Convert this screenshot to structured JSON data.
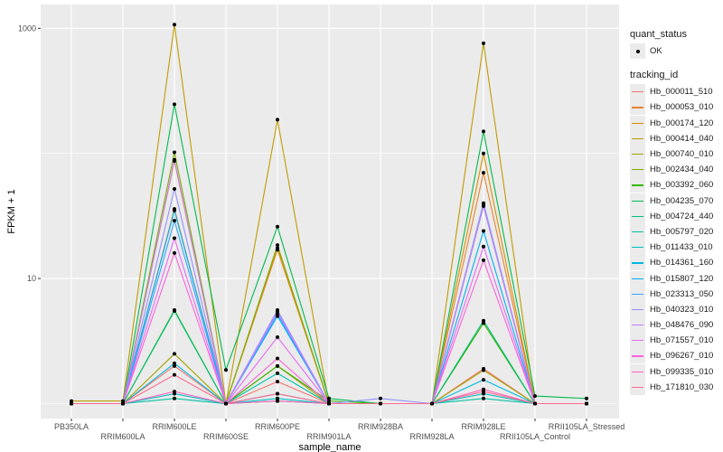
{
  "chart_data": {
    "type": "line",
    "title": "",
    "xlabel": "sample_name",
    "ylabel": "FPKM + 1",
    "yscale": "log10",
    "ylim": [
      0.76,
      1550
    ],
    "y_ticks": [
      10,
      1000
    ],
    "y_tick_labels": [
      "10",
      "1000"
    ],
    "grid": true,
    "categories": [
      "PB350LA",
      "RRIM600LA",
      "RRIM600LE",
      "RRIM600SE",
      "RRIM600PE",
      "RRIM901LA",
      "RRIM928BA",
      "RRIM928LA",
      "RRIM928LE",
      "RRII105LA_Control",
      "RRII105LA_Stressed"
    ],
    "legend_position": "right",
    "shape_legend": {
      "title": "quant_status",
      "entries": [
        "OK"
      ]
    },
    "color_legend_title": "tracking_id",
    "series": [
      {
        "name": "Hb_000011_510",
        "color": "#F8766D",
        "values": [
          1,
          1,
          2.0,
          1,
          1.5,
          1,
          1,
          1,
          1.9,
          1,
          1
        ]
      },
      {
        "name": "Hb_000053_010",
        "color": "#EA8331",
        "values": [
          1,
          1,
          36,
          1,
          17,
          1,
          1,
          1,
          70,
          1,
          1
        ]
      },
      {
        "name": "Hb_000174_120",
        "color": "#D89000",
        "values": [
          1,
          1,
          87,
          1,
          17.5,
          1,
          1,
          1,
          100,
          1,
          1
        ]
      },
      {
        "name": "Hb_000414_040",
        "color": "#C09B00",
        "values": [
          1.05,
          1.05,
          1070,
          1,
          186,
          1,
          1,
          1,
          760,
          1,
          1
        ]
      },
      {
        "name": "Hb_000740_010",
        "color": "#A3A500",
        "values": [
          1,
          1,
          2.5,
          1,
          2.0,
          1,
          1,
          1,
          1.85,
          1,
          1
        ]
      },
      {
        "name": "Hb_002434_040",
        "color": "#7CAE00",
        "values": [
          1,
          1,
          102,
          1,
          18.5,
          1,
          1,
          1,
          38,
          1,
          1
        ]
      },
      {
        "name": "Hb_003392_060",
        "color": "#39B600",
        "values": [
          1,
          1,
          5.6,
          1,
          2.0,
          1.05,
          1,
          1,
          4.4,
          1,
          1
        ]
      },
      {
        "name": "Hb_004235_070",
        "color": "#00BB4E",
        "values": [
          1,
          1,
          247,
          1.86,
          26,
          1.1,
          1,
          1,
          150,
          1.15,
          1.1
        ]
      },
      {
        "name": "Hb_004724_440",
        "color": "#00BF7D",
        "values": [
          1,
          1,
          5.5,
          1,
          1.05,
          1,
          1,
          1,
          4.6,
          1,
          1
        ]
      },
      {
        "name": "Hb_005797_020",
        "color": "#00C1A3",
        "values": [
          1,
          1,
          1.1,
          1,
          1.75,
          1,
          1,
          1,
          1.1,
          1,
          1
        ]
      },
      {
        "name": "Hb_011433_010",
        "color": "#00BFC4",
        "values": [
          1,
          1,
          1.2,
          1,
          1.1,
          1,
          1,
          1,
          1.2,
          1,
          1
        ]
      },
      {
        "name": "Hb_014361_160",
        "color": "#00BAE0",
        "values": [
          1,
          1,
          2.1,
          1,
          1.2,
          1,
          1,
          1,
          1.55,
          1,
          1
        ]
      },
      {
        "name": "Hb_015807_120",
        "color": "#00B0F6",
        "values": [
          1,
          1,
          35,
          1,
          5.0,
          1,
          1,
          1,
          24,
          1,
          1
        ]
      },
      {
        "name": "Hb_023313_050",
        "color": "#35A2FF",
        "values": [
          1,
          1,
          29,
          1,
          5.2,
          1,
          1,
          1,
          40,
          1,
          1
        ]
      },
      {
        "name": "Hb_040323_010",
        "color": "#9590FF",
        "values": [
          1,
          1,
          52,
          1,
          5.6,
          1,
          1.1,
          1,
          38,
          1,
          1
        ]
      },
      {
        "name": "Hb_048476_090",
        "color": "#C77CFF",
        "values": [
          1,
          1,
          89,
          1,
          5.4,
          1,
          1,
          1,
          39,
          1,
          1
        ]
      },
      {
        "name": "Hb_071557_010",
        "color": "#E76BF3",
        "values": [
          1,
          1,
          21,
          1,
          3.4,
          1,
          1,
          1,
          18,
          1,
          1
        ]
      },
      {
        "name": "Hb_096267_010",
        "color": "#FA62DB",
        "values": [
          1,
          1,
          16,
          1,
          2.3,
          1,
          1,
          1,
          14,
          1,
          1
        ]
      },
      {
        "name": "Hb_099335_010",
        "color": "#FF62BC",
        "values": [
          1,
          1,
          1.25,
          1,
          1.05,
          1,
          1,
          1,
          1.3,
          1,
          1
        ]
      },
      {
        "name": "Hb_171810_030",
        "color": "#FF6C91",
        "values": [
          1,
          1,
          1.7,
          1,
          1.2,
          1,
          1,
          1,
          1.25,
          1,
          1
        ]
      }
    ]
  }
}
